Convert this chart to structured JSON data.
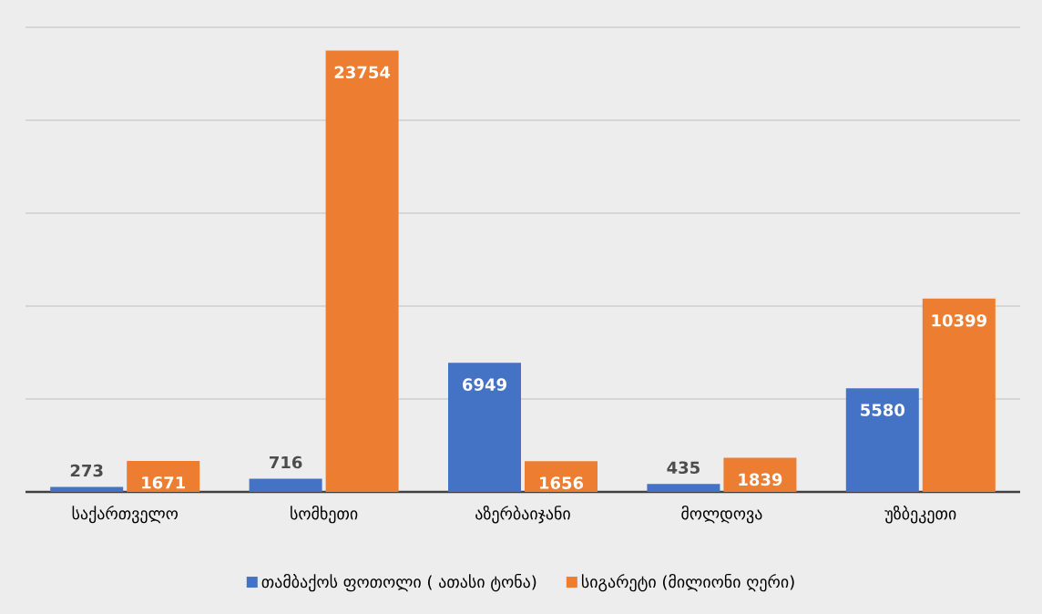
{
  "chart_data": {
    "type": "bar",
    "categories": [
      "საქართველო",
      "სომხეთი",
      "აზერბაიჯანი",
      "მოლდოვა",
      "უზბეკეთი"
    ],
    "series": [
      {
        "name": "თამბაქოს ფოთოლი ( ათასი ტონა)",
        "color": "#4472c4",
        "values": [
          273,
          716,
          6949,
          435,
          5580
        ]
      },
      {
        "name": "სიგარეტი (მილიონი ღერი)",
        "color": "#ed7d31",
        "values": [
          1671,
          23754,
          1656,
          1839,
          10399
        ]
      }
    ],
    "ylim": [
      0,
      25000
    ],
    "yticks": [
      0,
      5000,
      10000,
      15000,
      20000,
      25000
    ],
    "tick_labels": "x",
    "grid": "y",
    "legend": "bottom",
    "data_labels": true
  }
}
